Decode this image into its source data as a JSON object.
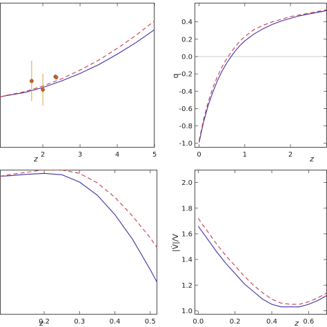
{
  "chart_data": [
    {
      "type": "line",
      "xlabel": "z",
      "ylabel": "",
      "xlim": [
        0.85,
        5.0
      ],
      "ylim": [
        0,
        1
      ],
      "x_ticks": [
        "2",
        "3",
        "4",
        "5"
      ],
      "series": [
        {
          "style": "solid",
          "color": "#3b2fa0",
          "x": [
            0.85,
            1.0,
            1.5,
            2.0,
            2.5,
            3.0,
            3.5,
            4.0,
            4.5,
            5.0
          ],
          "y": [
            0.35,
            0.358,
            0.38,
            0.415,
            0.46,
            0.512,
            0.573,
            0.645,
            0.725,
            0.815
          ]
        },
        {
          "style": "dashed",
          "color": "#c8374a",
          "x": [
            0.85,
            1.0,
            1.5,
            2.0,
            2.5,
            3.0,
            3.5,
            4.0,
            4.5,
            5.0
          ],
          "y": [
            0.35,
            0.36,
            0.385,
            0.425,
            0.475,
            0.535,
            0.604,
            0.685,
            0.775,
            0.875
          ]
        }
      ],
      "points": [
        {
          "x": 1.7,
          "y": 0.46,
          "err": 0.14
        },
        {
          "x": 2.0,
          "y": 0.4,
          "err": 0.11
        },
        {
          "x": 2.34,
          "y": 0.49,
          "err": 0.015
        },
        {
          "x": 2.36,
          "y": 0.485,
          "err": 0.015
        }
      ]
    },
    {
      "type": "line",
      "xlabel": "z",
      "ylabel": "q",
      "xlim": [
        -0.1,
        2.8
      ],
      "ylim": [
        -1.05,
        0.62
      ],
      "x_ticks": [
        "0",
        "1",
        "2"
      ],
      "y_ticks": [
        "-1.0",
        "-0.8",
        "-0.6",
        "-0.4",
        "-0.2",
        "0.0",
        "0.2",
        "0.4"
      ],
      "series": [
        {
          "style": "solid",
          "color": "#3b2fa0",
          "x": [
            0,
            0.1,
            0.2,
            0.3,
            0.4,
            0.5,
            0.6,
            0.7,
            0.8,
            0.9,
            1.0,
            1.2,
            1.4,
            1.6,
            1.8,
            2.0,
            2.2,
            2.4,
            2.6,
            2.8
          ],
          "y": [
            -0.99,
            -0.75,
            -0.56,
            -0.41,
            -0.28,
            -0.17,
            -0.08,
            0.0,
            0.07,
            0.13,
            0.18,
            0.26,
            0.32,
            0.37,
            0.41,
            0.44,
            0.47,
            0.49,
            0.51,
            0.53
          ]
        },
        {
          "style": "dashed",
          "color": "#c8374a",
          "x": [
            0,
            0.1,
            0.2,
            0.3,
            0.4,
            0.5,
            0.6,
            0.7,
            0.8,
            0.9,
            1.0,
            1.2,
            1.4,
            1.6,
            1.8,
            2.0,
            2.2,
            2.4,
            2.6,
            2.8
          ],
          "y": [
            -0.97,
            -0.72,
            -0.52,
            -0.36,
            -0.23,
            -0.12,
            -0.03,
            0.05,
            0.12,
            0.18,
            0.23,
            0.31,
            0.36,
            0.4,
            0.43,
            0.46,
            0.48,
            0.5,
            0.52,
            0.54
          ]
        }
      ]
    },
    {
      "type": "line",
      "xlabel": "z",
      "ylabel": "",
      "xlim": [
        0.075,
        0.52
      ],
      "ylim": [
        0,
        1
      ],
      "x_ticks": [
        "0.2",
        "0.3",
        "0.4",
        "0.5"
      ],
      "series": [
        {
          "style": "solid",
          "color": "#3b2fa0",
          "x": [
            0.075,
            0.1,
            0.15,
            0.2,
            0.25,
            0.3,
            0.35,
            0.4,
            0.45,
            0.5,
            0.52
          ],
          "y": [
            0.955,
            0.958,
            0.968,
            0.975,
            0.965,
            0.915,
            0.825,
            0.69,
            0.52,
            0.31,
            0.22
          ]
        },
        {
          "style": "dashed",
          "color": "#c8374a",
          "x": [
            0.075,
            0.1,
            0.15,
            0.2,
            0.25,
            0.3,
            0.35,
            0.4,
            0.45,
            0.5,
            0.52
          ],
          "y": [
            0.955,
            0.965,
            0.982,
            1.0,
            0.998,
            0.975,
            0.91,
            0.81,
            0.68,
            0.53,
            0.46
          ]
        }
      ]
    },
    {
      "type": "line",
      "xlabel": "z",
      "ylabel": "|V̇|/V",
      "xlim": [
        -0.02,
        0.7
      ],
      "ylim": [
        0.97,
        2.1
      ],
      "x_ticks": [
        "0.0",
        "0.2",
        "0.4",
        "0.6"
      ],
      "y_ticks": [
        "1.0",
        "1.2",
        "1.4",
        "1.6",
        "1.8",
        "2.0"
      ],
      "series": [
        {
          "style": "solid",
          "color": "#3b2fa0",
          "x": [
            0,
            0.05,
            0.1,
            0.15,
            0.2,
            0.25,
            0.3,
            0.35,
            0.4,
            0.45,
            0.5,
            0.55,
            0.6,
            0.65,
            0.7
          ],
          "y": [
            1.66,
            1.56,
            1.46,
            1.37,
            1.29,
            1.21,
            1.15,
            1.09,
            1.05,
            1.03,
            1.03,
            1.03,
            1.05,
            1.08,
            1.12
          ]
        },
        {
          "style": "dashed",
          "color": "#c8374a",
          "x": [
            0,
            0.05,
            0.1,
            0.15,
            0.2,
            0.25,
            0.3,
            0.35,
            0.4,
            0.45,
            0.5,
            0.55,
            0.6,
            0.65,
            0.7
          ],
          "y": [
            1.72,
            1.62,
            1.52,
            1.43,
            1.35,
            1.27,
            1.2,
            1.14,
            1.09,
            1.06,
            1.05,
            1.05,
            1.07,
            1.1,
            1.14
          ]
        }
      ]
    }
  ]
}
